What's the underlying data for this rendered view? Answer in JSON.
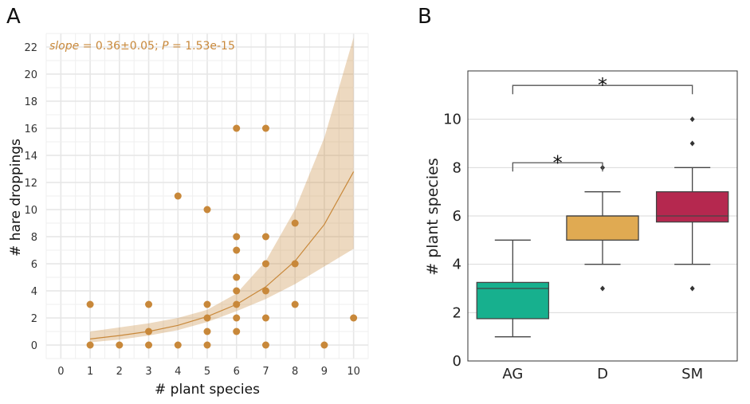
{
  "chart_data": [
    {
      "panel": "A",
      "type": "scatter",
      "annotation": {
        "slope_label": "slope",
        "slope_value": " = 0.36±0.05;  ",
        "p_label": "P",
        "p_value": " = 1.53e-15"
      },
      "xlabel": "# plant species",
      "ylabel": "# hare droppings",
      "xlim": [
        -0.5,
        10.5
      ],
      "ylim": [
        -1,
        23
      ],
      "xticks": [
        0,
        1,
        2,
        3,
        4,
        5,
        6,
        7,
        8,
        9,
        10
      ],
      "yticks": [
        0,
        2,
        4,
        6,
        8,
        10,
        12,
        14,
        16,
        18,
        20,
        22
      ],
      "grid": true,
      "point_color": "#c8883a",
      "points": [
        {
          "x": 1,
          "y": 3
        },
        {
          "x": 1,
          "y": 0
        },
        {
          "x": 2,
          "y": 0
        },
        {
          "x": 3,
          "y": 3
        },
        {
          "x": 3,
          "y": 1
        },
        {
          "x": 3,
          "y": 0
        },
        {
          "x": 4,
          "y": 11
        },
        {
          "x": 4,
          "y": 0
        },
        {
          "x": 5,
          "y": 10
        },
        {
          "x": 5,
          "y": 3
        },
        {
          "x": 5,
          "y": 2
        },
        {
          "x": 5,
          "y": 1
        },
        {
          "x": 5,
          "y": 0
        },
        {
          "x": 6,
          "y": 16
        },
        {
          "x": 6,
          "y": 8
        },
        {
          "x": 6,
          "y": 7
        },
        {
          "x": 6,
          "y": 5
        },
        {
          "x": 6,
          "y": 4
        },
        {
          "x": 6,
          "y": 3
        },
        {
          "x": 6,
          "y": 2
        },
        {
          "x": 6,
          "y": 1
        },
        {
          "x": 7,
          "y": 16
        },
        {
          "x": 7,
          "y": 8
        },
        {
          "x": 7,
          "y": 6
        },
        {
          "x": 7,
          "y": 4
        },
        {
          "x": 7,
          "y": 2
        },
        {
          "x": 7,
          "y": 0
        },
        {
          "x": 8,
          "y": 9
        },
        {
          "x": 8,
          "y": 6
        },
        {
          "x": 8,
          "y": 3
        },
        {
          "x": 9,
          "y": 0
        },
        {
          "x": 10,
          "y": 2
        }
      ],
      "fit": {
        "x": [
          1,
          2,
          3,
          4,
          5,
          6,
          7,
          8,
          9,
          10
        ],
        "y": [
          0.45,
          0.7,
          1.0,
          1.45,
          2.1,
          3.0,
          4.3,
          6.2,
          8.9,
          12.8
        ],
        "lower": [
          0.2,
          0.4,
          0.7,
          1.1,
          1.7,
          2.5,
          3.4,
          4.5,
          5.8,
          7.1
        ],
        "upper": [
          1.0,
          1.3,
          1.6,
          2.0,
          2.6,
          3.8,
          6.2,
          10.0,
          15.3,
          22.7
        ]
      }
    },
    {
      "panel": "B",
      "type": "box",
      "ylabel": "# plant species",
      "categories": [
        "AG",
        "D",
        "SM"
      ],
      "ylim": [
        0,
        12
      ],
      "yticks": [
        0,
        2,
        4,
        6,
        8,
        10
      ],
      "grid": true,
      "boxes": [
        {
          "name": "AG",
          "color": "#17b08e",
          "whisker_low": 1,
          "q1": 1.75,
          "median": 3,
          "q3": 3.25,
          "whisker_high": 5,
          "outliers": []
        },
        {
          "name": "D",
          "color": "#e0aa52",
          "whisker_low": 4,
          "q1": 5,
          "median": 6,
          "q3": 6,
          "whisker_high": 7,
          "outliers": [
            3,
            8
          ]
        },
        {
          "name": "SM",
          "color": "#b5284f",
          "whisker_low": 4,
          "q1": 5.75,
          "median": 6,
          "q3": 7,
          "whisker_high": 8,
          "outliers": [
            3,
            9,
            10
          ]
        }
      ],
      "significance": [
        {
          "from": "AG",
          "to": "D",
          "label": "*",
          "height": 8.2
        },
        {
          "from": "AG",
          "to": "SM",
          "label": "*",
          "height": 11.4
        }
      ]
    }
  ],
  "panel_letters": [
    "A",
    "B"
  ]
}
